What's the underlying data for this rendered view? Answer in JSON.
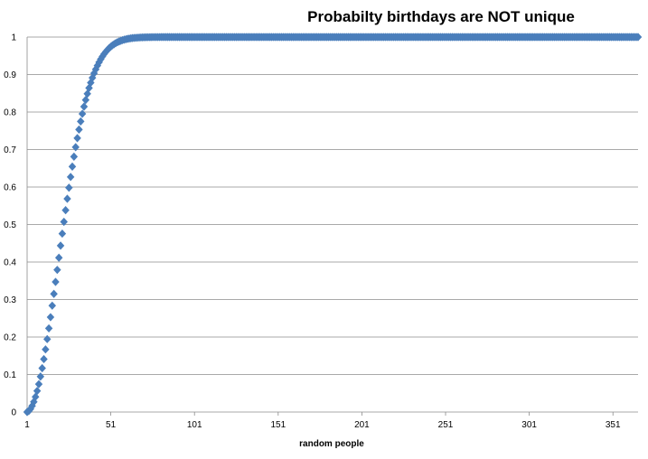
{
  "chart_data": {
    "type": "scatter",
    "title": "Probabilty birthdays are NOT unique",
    "xlabel": "random people",
    "ylabel": "",
    "xlim": [
      1,
      366
    ],
    "ylim": [
      0,
      1
    ],
    "x_ticks": [
      1,
      51,
      101,
      151,
      201,
      251,
      301,
      351
    ],
    "y_ticks": [
      0,
      0.1,
      0.2,
      0.3,
      0.4,
      0.5,
      0.6,
      0.7,
      0.8,
      0.9,
      1
    ],
    "y_tick_labels": [
      "0",
      "0.1",
      "0.2",
      "0.3",
      "0.4",
      "0.5",
      "0.6",
      "0.7",
      "0.8",
      "0.9",
      "1"
    ],
    "grid": "horizontal",
    "legend": "none",
    "marker": "diamond",
    "marker_color": "#4A7EBB",
    "series": [
      {
        "x_start": 1,
        "x_end": 366,
        "values": [
          0,
          0.0027,
          0.0082,
          0.0164,
          0.0271,
          0.0405,
          0.0562,
          0.0743,
          0.0946,
          0.1169,
          0.1411,
          0.167,
          0.1944,
          0.2231,
          0.2529,
          0.2836,
          0.315,
          0.3469,
          0.3791,
          0.4114,
          0.4437,
          0.4757,
          0.5073,
          0.5383,
          0.5687,
          0.5982,
          0.6269,
          0.6545,
          0.681,
          0.7063,
          0.7305,
          0.7533,
          0.775,
          0.7953,
          0.8144,
          0.8322,
          0.8487,
          0.8641,
          0.8782,
          0.8912,
          0.9032,
          0.914,
          0.9239,
          0.9329,
          0.941,
          0.9483,
          0.9548,
          0.9606,
          0.9658,
          0.9704,
          0.9744,
          0.978,
          0.9811,
          0.9839,
          0.9863,
          0.9883,
          0.9901,
          0.9917,
          0.993,
          0.9941,
          0.9951,
          0.9959,
          0.9966,
          0.9972,
          0.9977,
          0.9981,
          0.9984,
          0.9987,
          0.9989,
          0.9991,
          0.9993,
          0.9994,
          0.9995,
          0.9996,
          0.9997,
          0.9998,
          0.9998,
          0.9999,
          0.9999,
          0.9999,
          1
        ],
        "tail_value": 1
      }
    ]
  }
}
